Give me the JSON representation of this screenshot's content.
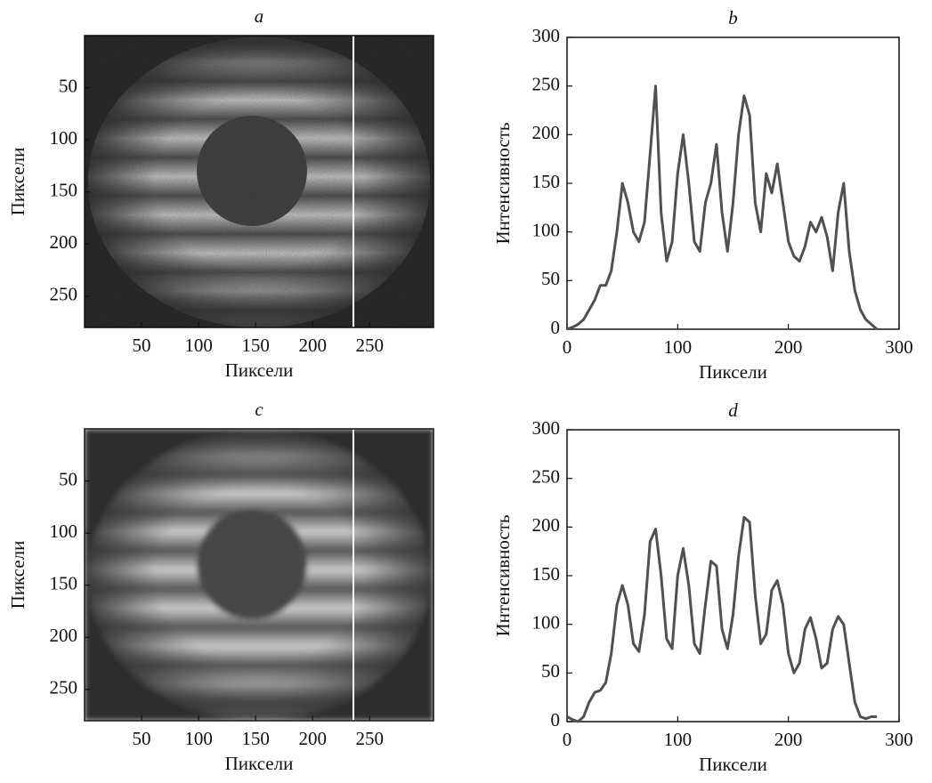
{
  "chart_data": [
    {
      "type": "image",
      "title": "a",
      "xlabel": "Пиксели",
      "ylabel": "Пиксели",
      "xlim": [
        0,
        306
      ],
      "ylim": [
        0,
        280
      ],
      "yinverted": true,
      "xticks": [
        50,
        100,
        150,
        200,
        250
      ],
      "yticks": [
        50,
        100,
        150,
        200,
        250
      ]
    },
    {
      "type": "line",
      "title": "b",
      "xlabel": "Пиксели",
      "ylabel": "Интенсивность",
      "xlim": [
        0,
        300
      ],
      "ylim": [
        0,
        300
      ],
      "xticks": [
        0,
        100,
        200,
        300
      ],
      "yticks": [
        0,
        50,
        100,
        150,
        200,
        250,
        300
      ],
      "x": [
        0,
        5,
        10,
        15,
        20,
        25,
        30,
        35,
        40,
        45,
        50,
        55,
        60,
        65,
        70,
        75,
        80,
        85,
        90,
        95,
        100,
        105,
        110,
        115,
        120,
        125,
        130,
        135,
        140,
        145,
        150,
        155,
        160,
        165,
        170,
        175,
        180,
        185,
        190,
        195,
        200,
        205,
        210,
        215,
        220,
        225,
        230,
        235,
        240,
        245,
        250,
        255,
        260,
        265,
        270,
        275,
        280
      ],
      "series": [
        {
          "color": "#505050",
          "values": [
            0,
            2,
            5,
            10,
            20,
            30,
            45,
            45,
            60,
            100,
            150,
            130,
            100,
            90,
            110,
            180,
            250,
            120,
            70,
            90,
            160,
            200,
            150,
            90,
            80,
            130,
            150,
            190,
            120,
            80,
            130,
            200,
            240,
            220,
            130,
            100,
            160,
            140,
            170,
            130,
            90,
            75,
            70,
            85,
            110,
            100,
            115,
            95,
            60,
            120,
            150,
            80,
            40,
            20,
            10,
            5,
            0
          ]
        }
      ]
    },
    {
      "type": "image",
      "title": "c",
      "xlabel": "Пиксели",
      "ylabel": "Пиксели",
      "xlim": [
        0,
        306
      ],
      "ylim": [
        0,
        280
      ],
      "yinverted": true,
      "xticks": [
        50,
        100,
        150,
        200,
        250
      ],
      "yticks": [
        50,
        100,
        150,
        200,
        250
      ]
    },
    {
      "type": "line",
      "title": "d",
      "xlabel": "Пиксели",
      "ylabel": "Интенсивность",
      "xlim": [
        0,
        300
      ],
      "ylim": [
        0,
        300
      ],
      "xticks": [
        0,
        100,
        200,
        300
      ],
      "yticks": [
        0,
        50,
        100,
        150,
        200,
        250,
        300
      ],
      "x": [
        0,
        5,
        10,
        15,
        20,
        25,
        30,
        35,
        40,
        45,
        50,
        55,
        60,
        65,
        70,
        75,
        80,
        85,
        90,
        95,
        100,
        105,
        110,
        115,
        120,
        125,
        130,
        135,
        140,
        145,
        150,
        155,
        160,
        165,
        170,
        175,
        180,
        185,
        190,
        195,
        200,
        205,
        210,
        215,
        220,
        225,
        230,
        235,
        240,
        245,
        250,
        255,
        260,
        265,
        270,
        275,
        280
      ],
      "series": [
        {
          "color": "#505050",
          "values": [
            5,
            2,
            0,
            5,
            20,
            30,
            32,
            40,
            70,
            120,
            140,
            120,
            80,
            72,
            110,
            185,
            198,
            150,
            85,
            75,
            150,
            178,
            140,
            80,
            70,
            120,
            165,
            160,
            95,
            75,
            110,
            170,
            210,
            205,
            130,
            80,
            90,
            135,
            145,
            120,
            70,
            50,
            60,
            95,
            107,
            85,
            55,
            60,
            95,
            108,
            100,
            60,
            20,
            5,
            3,
            5,
            5
          ]
        }
      ]
    }
  ]
}
